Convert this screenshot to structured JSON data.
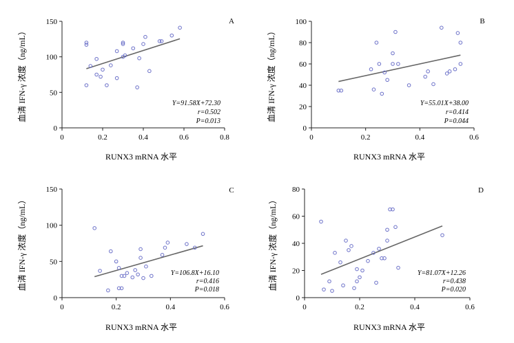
{
  "chart_data": [
    {
      "type": "scatter",
      "panel_label": "A",
      "xlabel": "RUNX3 mRNA 水平",
      "ylabel": "血清 IFN-γ 浓度（ng/mL）",
      "xlim": [
        0,
        0.8
      ],
      "ylim": [
        0,
        150
      ],
      "xticks": [
        "0",
        "0.2",
        "0.4",
        "0.6",
        "0.8"
      ],
      "yticks": [
        "0",
        "50",
        "100",
        "150"
      ],
      "points": [
        [
          0.12,
          120
        ],
        [
          0.12,
          117
        ],
        [
          0.12,
          60
        ],
        [
          0.14,
          87
        ],
        [
          0.17,
          97
        ],
        [
          0.17,
          75
        ],
        [
          0.19,
          72
        ],
        [
          0.2,
          82
        ],
        [
          0.22,
          60
        ],
        [
          0.24,
          88
        ],
        [
          0.27,
          108
        ],
        [
          0.27,
          70
        ],
        [
          0.3,
          100
        ],
        [
          0.3,
          120
        ],
        [
          0.3,
          118
        ],
        [
          0.31,
          102
        ],
        [
          0.35,
          112
        ],
        [
          0.37,
          57
        ],
        [
          0.38,
          98
        ],
        [
          0.4,
          118
        ],
        [
          0.41,
          128
        ],
        [
          0.43,
          80
        ],
        [
          0.48,
          122
        ],
        [
          0.49,
          122
        ],
        [
          0.54,
          130
        ],
        [
          0.58,
          141
        ]
      ],
      "fit": {
        "slope": 91.58,
        "intercept": 72.3,
        "x_range": [
          0.12,
          0.58
        ]
      },
      "annotations": [
        "Y=91.58X+72.30",
        "r=0.502",
        "P=0.013"
      ],
      "grid": false,
      "legend": "none"
    },
    {
      "type": "scatter",
      "panel_label": "B",
      "xlabel": "RUNX3 mRNA 水平",
      "ylabel": "血清 IFN-γ 浓度（ng/mL）",
      "xlim": [
        0,
        0.6
      ],
      "ylim": [
        0,
        100
      ],
      "xticks": [
        "0",
        "0.2",
        "0.4",
        "0.6"
      ],
      "yticks": [
        "0",
        "20",
        "40",
        "60",
        "80",
        "100"
      ],
      "points": [
        [
          0.1,
          35
        ],
        [
          0.11,
          35
        ],
        [
          0.22,
          55
        ],
        [
          0.23,
          36
        ],
        [
          0.24,
          80
        ],
        [
          0.25,
          60
        ],
        [
          0.26,
          32
        ],
        [
          0.27,
          52
        ],
        [
          0.28,
          45
        ],
        [
          0.3,
          70
        ],
        [
          0.3,
          60
        ],
        [
          0.31,
          90
        ],
        [
          0.32,
          60
        ],
        [
          0.36,
          40
        ],
        [
          0.42,
          48
        ],
        [
          0.43,
          53
        ],
        [
          0.45,
          41
        ],
        [
          0.48,
          94
        ],
        [
          0.5,
          51
        ],
        [
          0.51,
          53
        ],
        [
          0.53,
          55
        ],
        [
          0.54,
          89
        ],
        [
          0.55,
          80
        ],
        [
          0.55,
          60
        ]
      ],
      "fit": {
        "slope": 55.01,
        "intercept": 38.0,
        "x_range": [
          0.1,
          0.55
        ]
      },
      "annotations": [
        "Y=55.01X+38.00",
        "r=0.414",
        "P=0.044"
      ],
      "grid": false,
      "legend": "none"
    },
    {
      "type": "scatter",
      "panel_label": "C",
      "xlabel": "RUNX3 mRNA 水平",
      "ylabel": "血清 IFN-γ 浓度（ng/mL）",
      "xlim": [
        0,
        0.6
      ],
      "ylim": [
        0,
        150
      ],
      "xticks": [
        "0",
        "0.2",
        "0.4",
        "0.6"
      ],
      "yticks": [
        "0",
        "50",
        "100",
        "150"
      ],
      "points": [
        [
          0.12,
          96
        ],
        [
          0.14,
          37
        ],
        [
          0.17,
          10
        ],
        [
          0.18,
          64
        ],
        [
          0.2,
          50
        ],
        [
          0.21,
          41
        ],
        [
          0.21,
          13
        ],
        [
          0.22,
          13
        ],
        [
          0.22,
          30
        ],
        [
          0.23,
          30
        ],
        [
          0.24,
          34
        ],
        [
          0.26,
          28
        ],
        [
          0.27,
          38
        ],
        [
          0.28,
          32
        ],
        [
          0.29,
          67
        ],
        [
          0.29,
          55
        ],
        [
          0.3,
          27
        ],
        [
          0.31,
          43
        ],
        [
          0.33,
          30
        ],
        [
          0.37,
          59
        ],
        [
          0.38,
          69
        ],
        [
          0.39,
          76
        ],
        [
          0.46,
          74
        ],
        [
          0.49,
          69
        ],
        [
          0.52,
          88
        ]
      ],
      "fit": {
        "slope": 106.8,
        "intercept": 16.1,
        "x_range": [
          0.12,
          0.52
        ]
      },
      "annotations": [
        "Y=106.8X+16.10",
        "r=0.416",
        "P=0.018"
      ],
      "grid": false,
      "legend": "none"
    },
    {
      "type": "scatter",
      "panel_label": "D",
      "xlabel": "RUNX3 mRNA 水平",
      "ylabel": "血清 IFN-γ 浓度（ng/mL）",
      "xlim": [
        0,
        0.6
      ],
      "ylim": [
        0,
        80
      ],
      "xticks": [
        "0",
        "0.2",
        "0.4",
        "0.6"
      ],
      "yticks": [
        "0",
        "20",
        "40",
        "60",
        "80"
      ],
      "points": [
        [
          0.06,
          56
        ],
        [
          0.07,
          6
        ],
        [
          0.09,
          12
        ],
        [
          0.1,
          5
        ],
        [
          0.11,
          33
        ],
        [
          0.13,
          26
        ],
        [
          0.14,
          9
        ],
        [
          0.15,
          42
        ],
        [
          0.16,
          35
        ],
        [
          0.17,
          38
        ],
        [
          0.18,
          7
        ],
        [
          0.19,
          12
        ],
        [
          0.19,
          21
        ],
        [
          0.2,
          15
        ],
        [
          0.21,
          20
        ],
        [
          0.23,
          27
        ],
        [
          0.25,
          33
        ],
        [
          0.26,
          11
        ],
        [
          0.27,
          36
        ],
        [
          0.28,
          29
        ],
        [
          0.29,
          29
        ],
        [
          0.3,
          50
        ],
        [
          0.3,
          42
        ],
        [
          0.31,
          65
        ],
        [
          0.32,
          65
        ],
        [
          0.33,
          52
        ],
        [
          0.34,
          22
        ],
        [
          0.5,
          46
        ]
      ],
      "fit": {
        "slope": 81.07,
        "intercept": 12.26,
        "x_range": [
          0.06,
          0.5
        ]
      },
      "annotations": [
        "Y=81.07X+12.26",
        "r=0.438",
        "P=0.020"
      ],
      "grid": false,
      "legend": "none"
    }
  ],
  "colors": {
    "point": "#6b70c8",
    "fit_line": "#666666",
    "axis": "#222222"
  }
}
